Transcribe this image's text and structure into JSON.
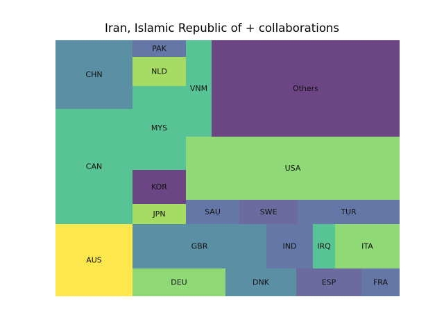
{
  "chart_data": {
    "type": "treemap",
    "title": "Iran, Islamic Republic of + collaborations",
    "colors": {
      "yellow": "#fde74c",
      "teal": "#58c394",
      "cyan_blue": "#5b8fa4",
      "slate_blue": "#6477a6",
      "purple": "#6c4585",
      "light_green": "#90d977",
      "lime": "#a6dc63"
    },
    "cells": [
      {
        "label": "AUS",
        "value": 1,
        "color": "#fde74c"
      },
      {
        "label": "CAN",
        "value": 1,
        "color": "#58c394"
      },
      {
        "label": "CHN",
        "value": 1,
        "color": "#5b8fa4"
      },
      {
        "label": "JPN",
        "value": 1,
        "color": "#a6dc63"
      },
      {
        "label": "KOR",
        "value": 1,
        "color": "#6c4585"
      },
      {
        "label": "MYS",
        "value": 1,
        "color": "#58c394"
      },
      {
        "label": "NLD",
        "value": 1,
        "color": "#a6dc63"
      },
      {
        "label": "PAK",
        "value": 1,
        "color": "#6477a6"
      },
      {
        "label": "VNM",
        "value": 1,
        "color": "#58c394"
      },
      {
        "label": "Others",
        "value": 1,
        "color": "#6c4585"
      },
      {
        "label": "USA",
        "value": 1,
        "color": "#90d977"
      },
      {
        "label": "SAU",
        "value": 1,
        "color": "#6477a6"
      },
      {
        "label": "SWE",
        "value": 1,
        "color": "#6c6ba0"
      },
      {
        "label": "TUR",
        "value": 1,
        "color": "#6477a6"
      },
      {
        "label": "GBR",
        "value": 1,
        "color": "#5b8fa4"
      },
      {
        "label": "IND",
        "value": 1,
        "color": "#6477a6"
      },
      {
        "label": "IRQ",
        "value": 1,
        "color": "#58c394"
      },
      {
        "label": "ITA",
        "value": 1,
        "color": "#90d977"
      },
      {
        "label": "DEU",
        "value": 1,
        "color": "#90d977"
      },
      {
        "label": "DNK",
        "value": 1,
        "color": "#5b8fa4"
      },
      {
        "label": "ESP",
        "value": 1,
        "color": "#6c6ba0"
      },
      {
        "label": "FRA",
        "value": 1,
        "color": "#6477a6"
      }
    ]
  }
}
